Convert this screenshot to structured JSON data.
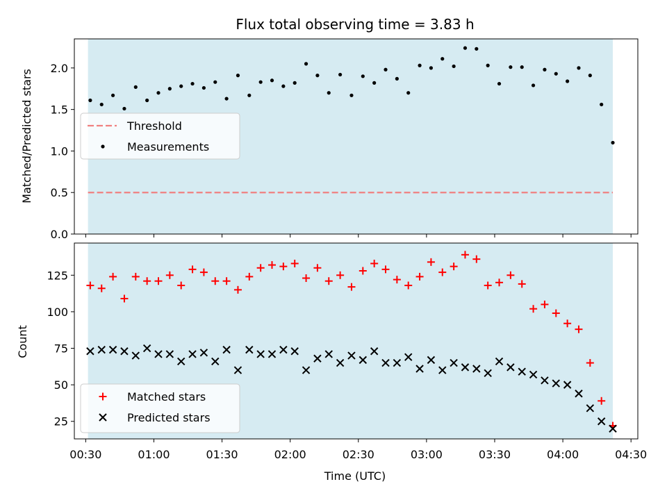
{
  "title": "Flux total observing time = 3.83 h",
  "colors": {
    "shade": "#add8e6",
    "threshold": "#f08080",
    "measurement": "#000000",
    "matched": "#ff0000",
    "predicted": "#000000"
  },
  "chart_data": [
    {
      "type": "scatter",
      "panel": "top",
      "xlabel": "",
      "ylabel": "Matched/Predicted stars",
      "ylim": [
        0,
        2.35
      ],
      "yticks": [
        0.0,
        0.5,
        1.0,
        1.5,
        2.0
      ],
      "ytick_labels": [
        "0.0",
        "0.5",
        "1.0",
        "1.5",
        "2.0"
      ],
      "shaded_span": {
        "x_start": "00:31",
        "x_end": "04:22"
      },
      "legend": {
        "position": "center-left",
        "entries": [
          "Threshold",
          "Measurements"
        ]
      },
      "threshold": {
        "name": "Threshold",
        "value": 0.5,
        "style": "dashed",
        "x_start": "00:31",
        "x_end": "04:22"
      },
      "series": [
        {
          "name": "Measurements",
          "marker": "dot",
          "x": [
            "00:32",
            "00:37",
            "00:42",
            "00:47",
            "00:52",
            "00:57",
            "01:02",
            "01:07",
            "01:12",
            "01:17",
            "01:22",
            "01:27",
            "01:32",
            "01:37",
            "01:42",
            "01:47",
            "01:52",
            "01:57",
            "02:02",
            "02:07",
            "02:12",
            "02:17",
            "02:22",
            "02:27",
            "02:32",
            "02:37",
            "02:42",
            "02:47",
            "02:52",
            "02:57",
            "03:02",
            "03:07",
            "03:12",
            "03:17",
            "03:22",
            "03:27",
            "03:32",
            "03:37",
            "03:42",
            "03:47",
            "03:52",
            "03:57",
            "04:02",
            "04:07",
            "04:12",
            "04:17",
            "04:22"
          ],
          "y": [
            1.61,
            1.56,
            1.67,
            1.51,
            1.77,
            1.61,
            1.7,
            1.75,
            1.78,
            1.81,
            1.76,
            1.83,
            1.63,
            1.91,
            1.67,
            1.83,
            1.85,
            1.78,
            1.82,
            2.05,
            1.91,
            1.7,
            1.92,
            1.67,
            1.9,
            1.82,
            1.98,
            1.87,
            1.7,
            2.03,
            2.0,
            2.11,
            2.02,
            2.24,
            2.23,
            2.03,
            1.81,
            2.01,
            2.01,
            1.79,
            1.98,
            1.93,
            1.84,
            2.0,
            1.91,
            1.56,
            1.1
          ]
        }
      ]
    },
    {
      "type": "scatter",
      "panel": "bottom",
      "xlabel": "Time (UTC)",
      "ylabel": "Count",
      "ylim": [
        13,
        147
      ],
      "yticks": [
        25,
        50,
        75,
        100,
        125
      ],
      "ytick_labels": [
        "25",
        "50",
        "75",
        "100",
        "125"
      ],
      "xlim": [
        "00:25",
        "04:33"
      ],
      "xticks": [
        "00:30",
        "01:00",
        "01:30",
        "02:00",
        "02:30",
        "03:00",
        "03:30",
        "04:00",
        "04:30"
      ],
      "xtick_labels": [
        "00:30",
        "01:00",
        "01:30",
        "02:00",
        "02:30",
        "03:00",
        "03:30",
        "04:00",
        "04:30"
      ],
      "shaded_span": {
        "x_start": "00:31",
        "x_end": "04:22"
      },
      "legend": {
        "position": "lower-left",
        "entries": [
          "Matched stars",
          "Predicted stars"
        ]
      },
      "series": [
        {
          "name": "Matched stars",
          "marker": "plus",
          "x": [
            "00:32",
            "00:37",
            "00:42",
            "00:47",
            "00:52",
            "00:57",
            "01:02",
            "01:07",
            "01:12",
            "01:17",
            "01:22",
            "01:27",
            "01:32",
            "01:37",
            "01:42",
            "01:47",
            "01:52",
            "01:57",
            "02:02",
            "02:07",
            "02:12",
            "02:17",
            "02:22",
            "02:27",
            "02:32",
            "02:37",
            "02:42",
            "02:47",
            "02:52",
            "02:57",
            "03:02",
            "03:07",
            "03:12",
            "03:17",
            "03:22",
            "03:27",
            "03:32",
            "03:37",
            "03:42",
            "03:47",
            "03:52",
            "03:57",
            "04:02",
            "04:07",
            "04:12",
            "04:17",
            "04:22"
          ],
          "y": [
            118,
            116,
            124,
            109,
            124,
            121,
            121,
            125,
            118,
            129,
            127,
            121,
            121,
            115,
            124,
            130,
            132,
            131,
            133,
            123,
            130,
            121,
            125,
            117,
            128,
            133,
            129,
            122,
            118,
            124,
            134,
            127,
            131,
            139,
            136,
            118,
            120,
            125,
            119,
            102,
            105,
            99,
            92,
            88,
            65,
            39,
            22
          ]
        },
        {
          "name": "Predicted stars",
          "marker": "x",
          "x": [
            "00:32",
            "00:37",
            "00:42",
            "00:47",
            "00:52",
            "00:57",
            "01:02",
            "01:07",
            "01:12",
            "01:17",
            "01:22",
            "01:27",
            "01:32",
            "01:37",
            "01:42",
            "01:47",
            "01:52",
            "01:57",
            "02:02",
            "02:07",
            "02:12",
            "02:17",
            "02:22",
            "02:27",
            "02:32",
            "02:37",
            "02:42",
            "02:47",
            "02:52",
            "02:57",
            "03:02",
            "03:07",
            "03:12",
            "03:17",
            "03:22",
            "03:27",
            "03:32",
            "03:37",
            "03:42",
            "03:47",
            "03:52",
            "03:57",
            "04:02",
            "04:07",
            "04:12",
            "04:17",
            "04:22"
          ],
          "y": [
            73,
            74,
            74,
            73,
            70,
            75,
            71,
            71,
            66,
            71,
            72,
            66,
            74,
            60,
            74,
            71,
            71,
            74,
            73,
            60,
            68,
            71,
            65,
            70,
            67,
            73,
            65,
            65,
            69,
            61,
            67,
            60,
            65,
            62,
            61,
            58,
            66,
            62,
            59,
            57,
            53,
            51,
            50,
            44,
            34,
            25,
            20
          ]
        }
      ]
    }
  ]
}
